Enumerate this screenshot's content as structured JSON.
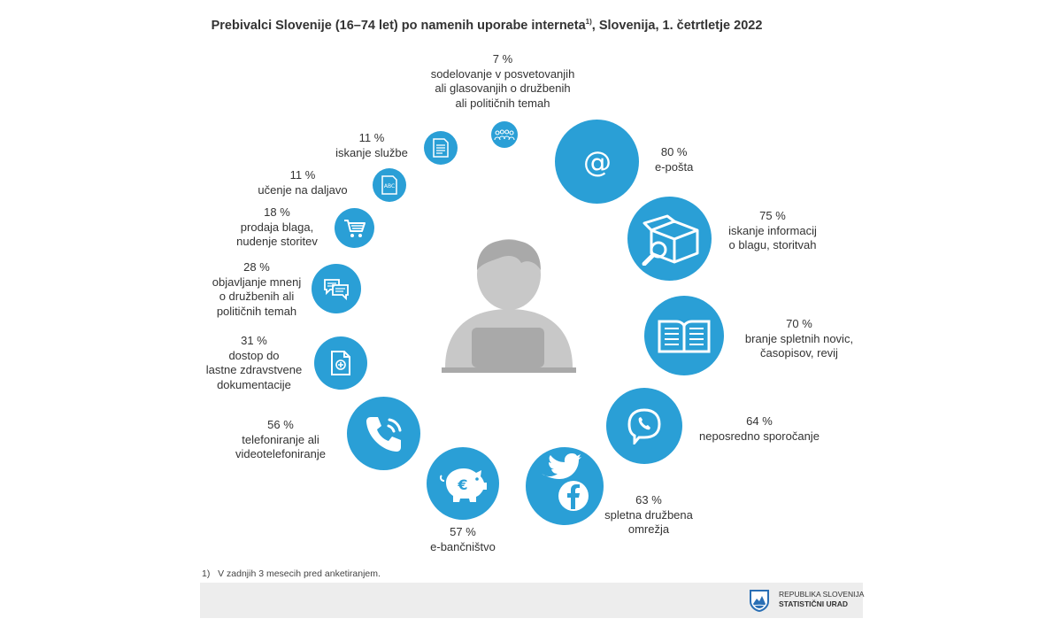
{
  "title": "Prebivalci Slovenije (16–74 let) po namenih uporabe interneta",
  "title_sup": "1)",
  "title_suffix": ", Slovenija, 1. četrtletje 2022",
  "colors": {
    "circle": "#2a9fd6",
    "person": "#c8c8c8",
    "person_dark": "#a9a9a9"
  },
  "items": [
    {
      "pct": "80 %",
      "label": "e-pošta",
      "icon": "at-icon"
    },
    {
      "pct": "75 %",
      "label": "iskanje informacij\no blagu, storitvah",
      "icon": "box-search-icon"
    },
    {
      "pct": "70 %",
      "label": "branje spletnih novic,\nčasopisov, revij",
      "icon": "open-book-icon"
    },
    {
      "pct": "64 %",
      "label": "neposredno sporočanje",
      "icon": "viber-icon"
    },
    {
      "pct": "63 %",
      "label": "spletna družbena\nomrežja",
      "icon": "twitter-facebook-icon"
    },
    {
      "pct": "57 %",
      "label": "e-bančništvo",
      "icon": "piggy-bank-euro-icon"
    },
    {
      "pct": "56 %",
      "label": "telefoniranje ali\nvideotelefoniranje",
      "icon": "phone-icon"
    },
    {
      "pct": "31 %",
      "label": "dostop do\nlastne zdravstvene\ndokumentacije",
      "icon": "medical-document-icon"
    },
    {
      "pct": "28 %",
      "label": "objavljanje mnenj\no družbenih ali\npolitičnih temah",
      "icon": "chat-bubbles-icon"
    },
    {
      "pct": "18 %",
      "label": "prodaja blaga,\nnudenje storitev",
      "icon": "shopping-cart-icon"
    },
    {
      "pct": "11 %",
      "label": "učenje na daljavo",
      "icon": "abc-document-icon"
    },
    {
      "pct": "11 %",
      "label": "iskanje službe",
      "icon": "document-icon"
    },
    {
      "pct": "7 %",
      "label": "sodelovanje v posvetovanjih\nali  glasovanjih o družbenih\nali političnih temah",
      "icon": "people-group-icon"
    }
  ],
  "footnote": "1)   V zadnjih 3 mesecih pred anketiranjem.",
  "org": {
    "line1": "REPUBLIKA SLOVENIJA",
    "line2": "STATISTIČNI URAD"
  }
}
